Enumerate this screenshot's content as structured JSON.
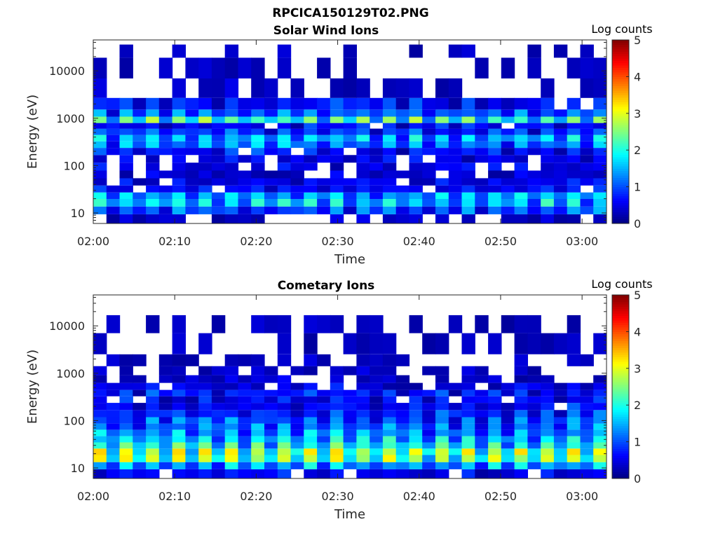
{
  "figure_title": "RPCICA150129T02.PNG",
  "chart_data": [
    {
      "type": "heatmap",
      "title": "Solar Wind Ions",
      "xlabel": "Time",
      "ylabel": "Energy (eV)",
      "x_ticks": [
        "02:00",
        "02:10",
        "02:20",
        "02:30",
        "02:40",
        "02:50",
        "03:00"
      ],
      "x_range": [
        "02:00",
        "03:03"
      ],
      "y_scale": "log",
      "y_ticks": [
        10,
        100,
        1000,
        10000
      ],
      "y_range": [
        6,
        45000
      ],
      "colorbar": {
        "label": "Log counts",
        "range": [
          0,
          5
        ],
        "ticks": [
          0,
          1,
          2,
          3,
          4,
          5
        ]
      },
      "energy_profile_log_counts": [
        {
          "energy": 8,
          "value": 0.2
        },
        {
          "energy": 11,
          "value": 1.2
        },
        {
          "energy": 17,
          "value": 1.9
        },
        {
          "energy": 23,
          "value": 1.7
        },
        {
          "energy": 32,
          "value": 0.7
        },
        {
          "energy": 45,
          "value": 0.6
        },
        {
          "energy": 65,
          "value": 0.4
        },
        {
          "energy": 95,
          "value": 0.5
        },
        {
          "energy": 140,
          "value": 0.5
        },
        {
          "energy": 200,
          "value": 0.8
        },
        {
          "energy": 280,
          "value": 1.5
        },
        {
          "energy": 380,
          "value": 1.8
        },
        {
          "energy": 520,
          "value": 1.0
        },
        {
          "energy": 700,
          "value": 0.7
        },
        {
          "energy": 900,
          "value": 2.5
        },
        {
          "energy": 1300,
          "value": 1.3
        },
        {
          "energy": 1800,
          "value": 0.8
        },
        {
          "energy": 4000,
          "value": 0.2
        },
        {
          "energy": 12000,
          "value": 0.1
        },
        {
          "energy": 30000,
          "value": 0.1
        }
      ]
    },
    {
      "type": "heatmap",
      "title": "Cometary Ions",
      "xlabel": "Time",
      "ylabel": "Energy (eV)",
      "x_ticks": [
        "02:00",
        "02:10",
        "02:20",
        "02:30",
        "02:40",
        "02:50",
        "03:00"
      ],
      "x_range": [
        "02:00",
        "03:03"
      ],
      "y_scale": "log",
      "y_ticks": [
        10,
        100,
        1000,
        10000
      ],
      "y_range": [
        6,
        45000
      ],
      "colorbar": {
        "label": "Log counts",
        "range": [
          0,
          5
        ],
        "ticks": [
          0,
          1,
          2,
          3,
          4,
          5
        ]
      },
      "energy_profile_log_counts": [
        {
          "energy": 8,
          "value": 0.6
        },
        {
          "energy": 11,
          "value": 1.7
        },
        {
          "energy": 16,
          "value": 2.9
        },
        {
          "energy": 22,
          "value": 3.0
        },
        {
          "energy": 30,
          "value": 2.3
        },
        {
          "energy": 40,
          "value": 1.9
        },
        {
          "energy": 55,
          "value": 1.6
        },
        {
          "energy": 75,
          "value": 1.4
        },
        {
          "energy": 100,
          "value": 1.2
        },
        {
          "energy": 140,
          "value": 1.0
        },
        {
          "energy": 200,
          "value": 0.8
        },
        {
          "energy": 280,
          "value": 0.7
        },
        {
          "energy": 380,
          "value": 0.9
        },
        {
          "energy": 520,
          "value": 0.5
        },
        {
          "energy": 750,
          "value": 0.3
        },
        {
          "energy": 1100,
          "value": 0.2
        },
        {
          "energy": 1800,
          "value": 0.2
        },
        {
          "energy": 3500,
          "value": 0.1
        },
        {
          "energy": 14000,
          "value": 0.1
        }
      ]
    }
  ]
}
